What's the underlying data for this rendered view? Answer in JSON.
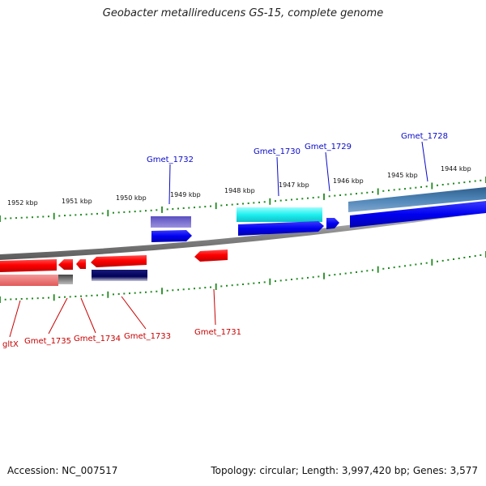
{
  "title": "Geobacter metallireducens GS-15, complete genome",
  "footer": {
    "accession": "Accession: NC_007517",
    "topology": "Topology: circular; Length: 3,997,420 bp; Genes: 3,577"
  },
  "colors": {
    "forward_label": "#0a0ac8",
    "reverse_label": "#c80000",
    "tick": "#1f8a1f",
    "backbone": "#8c8c8c"
  },
  "scale_labels": [
    "1952 kbp",
    "1951 kbp",
    "1950 kbp",
    "1949 kbp",
    "1948 kbp",
    "1947 kbp",
    "1946 kbp",
    "1945 kbp",
    "1944 kbp"
  ],
  "genes_forward": [
    "Gmet_1732",
    "Gmet_1730",
    "Gmet_1729",
    "Gmet_1728"
  ],
  "genes_reverse": [
    "gltX",
    "Gmet_1735",
    "Gmet_1734",
    "Gmet_1733",
    "Gmet_1731"
  ]
}
